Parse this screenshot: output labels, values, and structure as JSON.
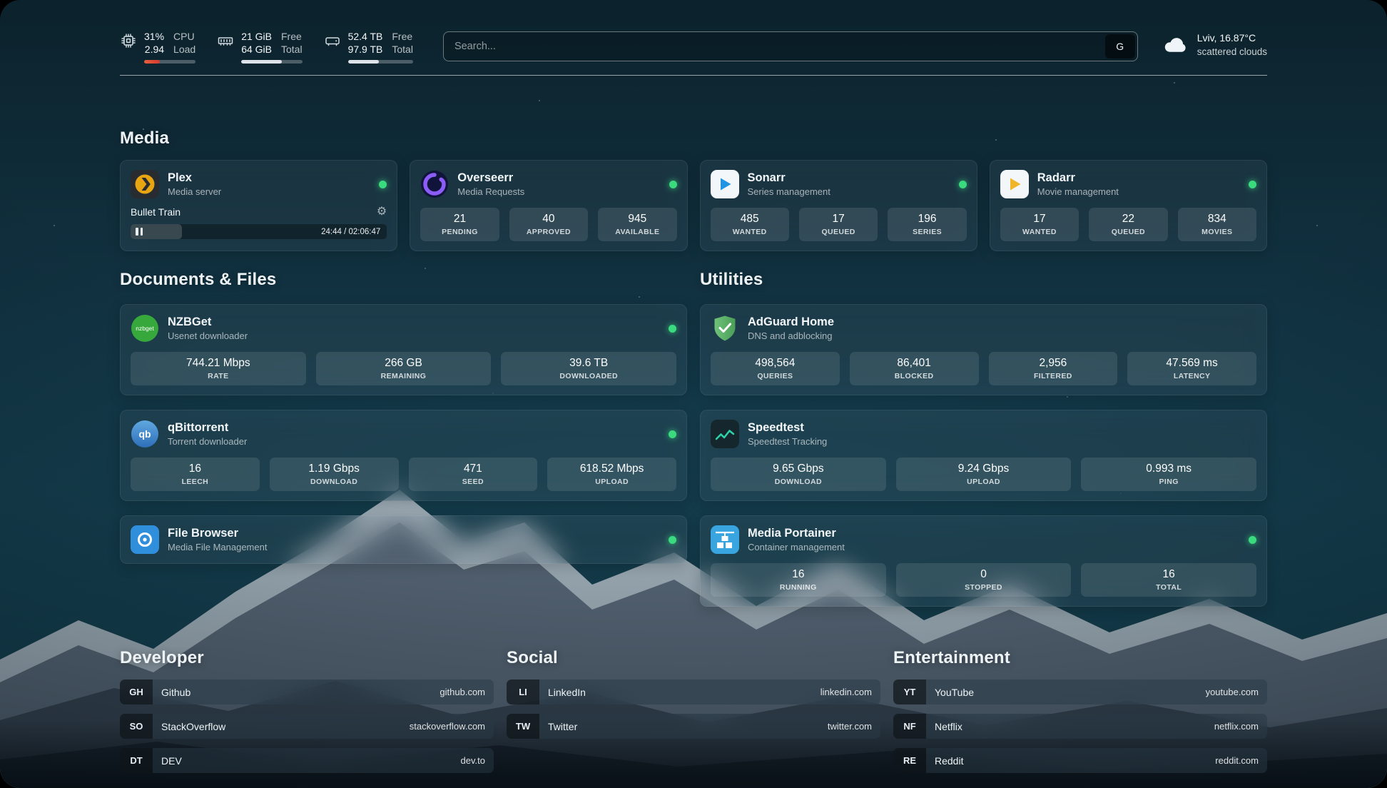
{
  "topbar": {
    "cpu": {
      "icon": "cpu-chip-icon",
      "values": [
        "31%",
        "2.94"
      ],
      "labels": [
        "CPU",
        "Load"
      ],
      "percent": 31
    },
    "memory": {
      "icon": "ram-icon",
      "values": [
        "21 GiB",
        "64 GiB"
      ],
      "labels": [
        "Free",
        "Total"
      ],
      "percent": 67
    },
    "disk": {
      "icon": "hard-drive-icon",
      "values": [
        "52.4 TB",
        "97.9 TB"
      ],
      "labels": [
        "Free",
        "Total"
      ],
      "percent": 47
    },
    "search": {
      "placeholder": "Search...",
      "provider_button": "G"
    },
    "weather": {
      "icon": "cloud-icon",
      "location": "Lviv, 16.87°C",
      "condition": "scattered clouds"
    }
  },
  "sections": {
    "media": "Media",
    "documents": "Documents & Files",
    "utilities": "Utilities",
    "developer": "Developer",
    "social": "Social",
    "entertainment": "Entertainment"
  },
  "services": {
    "plex": {
      "icon": "plex-icon",
      "name": "Plex",
      "subtitle": "Media server",
      "status": "online",
      "now_playing": "Bullet Train",
      "time": "24:44 / 02:06:47",
      "progress_percent": 20
    },
    "overseerr": {
      "icon": "overseerr-icon",
      "name": "Overseerr",
      "subtitle": "Media Requests",
      "status": "online",
      "stats": [
        {
          "value": "21",
          "label": "PENDING"
        },
        {
          "value": "40",
          "label": "APPROVED"
        },
        {
          "value": "945",
          "label": "AVAILABLE"
        }
      ]
    },
    "sonarr": {
      "icon": "sonarr-icon",
      "name": "Sonarr",
      "subtitle": "Series management",
      "status": "online",
      "stats": [
        {
          "value": "485",
          "label": "WANTED"
        },
        {
          "value": "17",
          "label": "QUEUED"
        },
        {
          "value": "196",
          "label": "SERIES"
        }
      ]
    },
    "radarr": {
      "icon": "radarr-icon",
      "name": "Radarr",
      "subtitle": "Movie management",
      "status": "online",
      "stats": [
        {
          "value": "17",
          "label": "WANTED"
        },
        {
          "value": "22",
          "label": "QUEUED"
        },
        {
          "value": "834",
          "label": "MOVIES"
        }
      ]
    },
    "nzbget": {
      "icon": "nzbget-icon",
      "name": "NZBGet",
      "subtitle": "Usenet downloader",
      "status": "online",
      "stats": [
        {
          "value": "744.21 Mbps",
          "label": "RATE"
        },
        {
          "value": "266 GB",
          "label": "REMAINING"
        },
        {
          "value": "39.6 TB",
          "label": "DOWNLOADED"
        }
      ]
    },
    "qbittorrent": {
      "icon": "qbittorrent-icon",
      "name": "qBittorrent",
      "subtitle": "Torrent downloader",
      "status": "online",
      "stats": [
        {
          "value": "16",
          "label": "LEECH"
        },
        {
          "value": "1.19 Gbps",
          "label": "DOWNLOAD"
        },
        {
          "value": "471",
          "label": "SEED"
        },
        {
          "value": "618.52 Mbps",
          "label": "UPLOAD"
        }
      ]
    },
    "filebrowser": {
      "icon": "filebrowser-icon",
      "name": "File Browser",
      "subtitle": "Media File Management",
      "status": "online"
    },
    "adguard": {
      "icon": "adguard-shield-icon",
      "name": "AdGuard Home",
      "subtitle": "DNS and adblocking",
      "stats": [
        {
          "value": "498,564",
          "label": "QUERIES"
        },
        {
          "value": "86,401",
          "label": "BLOCKED"
        },
        {
          "value": "2,956",
          "label": "FILTERED"
        },
        {
          "value": "47.569 ms",
          "label": "LATENCY"
        }
      ]
    },
    "speedtest": {
      "icon": "speedtest-graph-icon",
      "name": "Speedtest",
      "subtitle": "Speedtest Tracking",
      "stats": [
        {
          "value": "9.65 Gbps",
          "label": "DOWNLOAD"
        },
        {
          "value": "9.24 Gbps",
          "label": "UPLOAD"
        },
        {
          "value": "0.993 ms",
          "label": "PING"
        }
      ]
    },
    "portainer": {
      "icon": "portainer-icon",
      "name": "Media Portainer",
      "subtitle": "Container management",
      "status": "online",
      "stats": [
        {
          "value": "16",
          "label": "RUNNING"
        },
        {
          "value": "0",
          "label": "STOPPED"
        },
        {
          "value": "16",
          "label": "TOTAL"
        }
      ]
    }
  },
  "bookmarks": {
    "developer": [
      {
        "abbr": "GH",
        "name": "Github",
        "domain": "github.com"
      },
      {
        "abbr": "SO",
        "name": "StackOverflow",
        "domain": "stackoverflow.com"
      },
      {
        "abbr": "DT",
        "name": "DEV",
        "domain": "dev.to"
      }
    ],
    "social": [
      {
        "abbr": "LI",
        "name": "LinkedIn",
        "domain": "linkedin.com"
      },
      {
        "abbr": "TW",
        "name": "Twitter",
        "domain": "twitter.com"
      }
    ],
    "entertainment": [
      {
        "abbr": "YT",
        "name": "YouTube",
        "domain": "youtube.com"
      },
      {
        "abbr": "NF",
        "name": "Netflix",
        "domain": "netflix.com"
      },
      {
        "abbr": "RE",
        "name": "Reddit",
        "domain": "reddit.com"
      }
    ]
  },
  "colors": {
    "status_online": "#3ada7f",
    "cpu_bar": "#d63a2f",
    "accent_background": "#113140"
  }
}
